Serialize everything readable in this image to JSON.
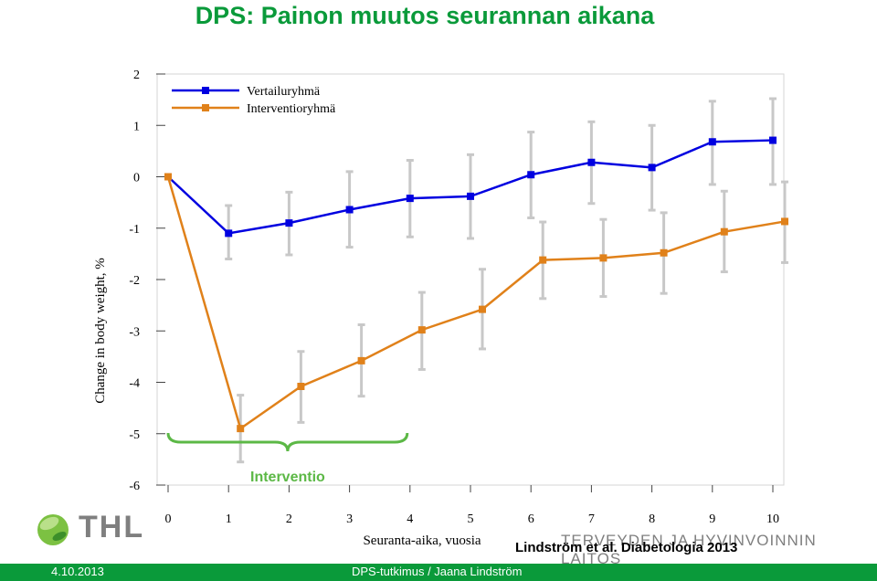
{
  "slide": {
    "title": "DPS: Painon muutos seurannan aikana",
    "institute_text": "TERVEYDEN JA HYVINVOINNIN LAITOS",
    "logo_text": "THL",
    "citation": "Lindström et al. Diabetologia 2013",
    "footer_date": "4.10.2013",
    "footer_credit": "DPS-tutkimus / Jaana Lindström"
  },
  "colors": {
    "title": "#0a9a3a",
    "control": "#0000e0",
    "intervention": "#e0811a",
    "errorbar": "#c8c8c8",
    "brace": "#5cb846",
    "footer": "#0a9a3a"
  },
  "chart_data": {
    "type": "line",
    "xlabel": "Seuranta-aika, vuosia",
    "ylabel": "Change in body weight, %",
    "xlim": [
      0,
      10
    ],
    "ylim": [
      -6,
      2
    ],
    "x": [
      0,
      1,
      2,
      3,
      4,
      5,
      6,
      7,
      8,
      9,
      10
    ],
    "x_ticks": [
      "0",
      "1",
      "2",
      "3",
      "4",
      "5",
      "6",
      "7",
      "8",
      "9",
      "10"
    ],
    "y_ticks": [
      "2",
      "1",
      "0",
      "-1",
      "-2",
      "-3",
      "-4",
      "-5",
      "-6"
    ],
    "series": [
      {
        "name": "Vertailuryhmä",
        "marker": "square",
        "values": [
          0,
          -1.1,
          -0.9,
          -0.64,
          -0.42,
          -0.38,
          0.04,
          0.28,
          0.18,
          0.68,
          0.71
        ],
        "err_low": [
          0,
          -1.6,
          -1.52,
          -1.37,
          -1.17,
          -1.2,
          -0.8,
          -0.52,
          -0.65,
          -0.15,
          -0.15
        ],
        "err_high": [
          0,
          -0.56,
          -0.3,
          0.1,
          0.32,
          0.43,
          0.87,
          1.07,
          1.0,
          1.47,
          1.52
        ]
      },
      {
        "name": "Interventioryhmä",
        "marker": "square",
        "values": [
          0,
          -4.9,
          -4.08,
          -3.58,
          -2.98,
          -2.58,
          -1.62,
          -1.58,
          -1.48,
          -1.07,
          -0.87
        ],
        "err_low": [
          0,
          -5.55,
          -4.78,
          -4.27,
          -3.75,
          -3.35,
          -2.37,
          -2.33,
          -2.27,
          -1.85,
          -1.67
        ],
        "err_high": [
          0,
          -4.25,
          -3.4,
          -2.88,
          -2.25,
          -1.8,
          -0.88,
          -0.83,
          -0.7,
          -0.28,
          -0.1
        ]
      }
    ],
    "annotations": [
      {
        "text": "Interventio",
        "x_from": 0,
        "x_to": 4,
        "type": "brace"
      }
    ],
    "legend_position": "top-left",
    "grid": false
  }
}
